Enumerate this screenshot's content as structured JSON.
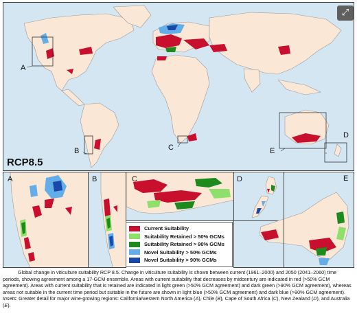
{
  "figure": {
    "scenario_label": "RCP8.5",
    "expand_icon": "expand-icon",
    "region_labels": {
      "A": "A",
      "B": "B",
      "C": "C",
      "D": "D",
      "E": "E"
    },
    "insets": [
      {
        "id": "A",
        "label": "A"
      },
      {
        "id": "B",
        "label": "B"
      },
      {
        "id": "C",
        "label": "C"
      },
      {
        "id": "D",
        "label": "D"
      },
      {
        "id": "E",
        "label": "E"
      }
    ],
    "colors": {
      "ocean": "#d4e6f2",
      "land": "#fbe7d6",
      "current": "#c8102e",
      "retained_50": "#8ee06a",
      "retained_90": "#1e8a1e",
      "novel_50": "#63aee8",
      "novel_90": "#1848a8"
    }
  },
  "legend": {
    "items": [
      {
        "label": "Current Suitability",
        "color": "#c8102e"
      },
      {
        "label": "Suitability Retained > 50% GCMs",
        "color": "#8ee06a"
      },
      {
        "label": "Suitability Retained > 90% GCMs",
        "color": "#1e8a1e"
      },
      {
        "label": "Novel Suitability > 50% GCMs",
        "color": "#63aee8"
      },
      {
        "label": "Novel Suitability > 90% GCMs",
        "color": "#1848a8"
      }
    ]
  },
  "caption": {
    "part1": "Global change in viticulture suitability RCP 8.5. Change in viticulture suitability is shown between current (1961–2000) and 2050 (2041–2060) time periods, showing agreement among a 17-GCM ensemble. Areas with current suitability that decreases by midcentury are indicated in red (>50% GCM agreement). Areas with current suitability that is retained are indicated in light green (>50% GCM agreement) and dark green (>90% GCM agreement), whereas areas not suitable in the current time period but suitable in the future are shown in light blue (>50% GCM agreement) and dark blue (>90% GCM agreement). ",
    "insets_label": "Insets",
    "part2": ": Greater detail for major wine-growing regions: California/western North America (",
    "a": "A",
    "part3": "), Chile (",
    "b": "B",
    "part4": "), Cape of South Africa (",
    "c": "C",
    "part5": "), New Zealand (",
    "d": "D",
    "part6": "), and Australia (",
    "e": "E",
    "part7": ")."
  }
}
